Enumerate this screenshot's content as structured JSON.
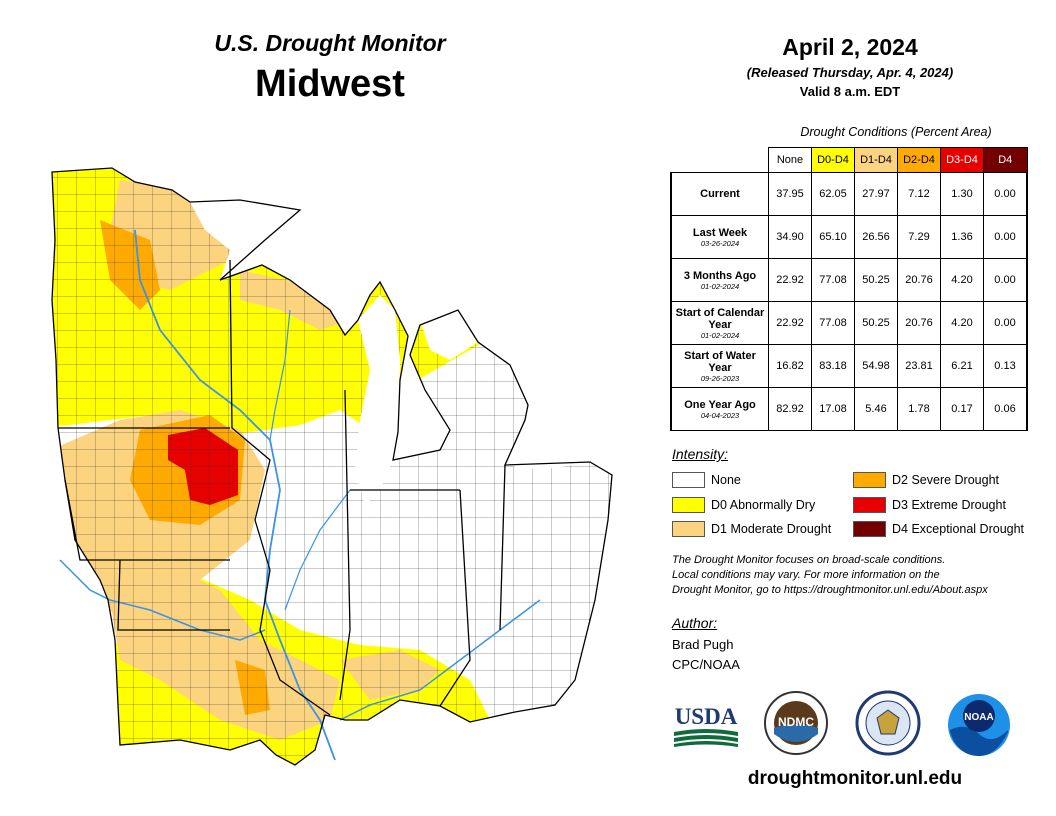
{
  "header": {
    "brand_title": "U.S. Drought Monitor",
    "region": "Midwest",
    "date": "April 2, 2024",
    "released": "(Released Thursday, Apr. 4, 2024)",
    "valid": "Valid 8 a.m. EDT"
  },
  "stats": {
    "caption": "Drought Conditions (Percent Area)",
    "columns": [
      {
        "label": "None",
        "color": "#ffffff",
        "text_color": "#000000"
      },
      {
        "label": "D0-D4",
        "color": "#ffff00",
        "text_color": "#000000"
      },
      {
        "label": "D1-D4",
        "color": "#fcd37f",
        "text_color": "#000000"
      },
      {
        "label": "D2-D4",
        "color": "#ffaa00",
        "text_color": "#000000"
      },
      {
        "label": "D3-D4",
        "color": "#e60000",
        "text_color": "#ffffff"
      },
      {
        "label": "D4",
        "color": "#730000",
        "text_color": "#ffffff"
      }
    ],
    "rows": [
      {
        "label": "Current",
        "date": "",
        "values": [
          "37.95",
          "62.05",
          "27.97",
          "7.12",
          "1.30",
          "0.00"
        ]
      },
      {
        "label": "Last Week",
        "date": "03-26-2024",
        "values": [
          "34.90",
          "65.10",
          "26.56",
          "7.29",
          "1.36",
          "0.00"
        ]
      },
      {
        "label": "3 Months Ago",
        "date": "01-02-2024",
        "values": [
          "22.92",
          "77.08",
          "50.25",
          "20.76",
          "4.20",
          "0.00"
        ]
      },
      {
        "label": "Start of Calendar Year",
        "date": "01-02-2024",
        "values": [
          "22.92",
          "77.08",
          "50.25",
          "20.76",
          "4.20",
          "0.00"
        ]
      },
      {
        "label": "Start of Water Year",
        "date": "09-26-2023",
        "values": [
          "16.82",
          "83.18",
          "54.98",
          "23.81",
          "6.21",
          "0.13"
        ]
      },
      {
        "label": "One Year Ago",
        "date": "04-04-2023",
        "values": [
          "82.92",
          "17.08",
          "5.46",
          "1.78",
          "0.17",
          "0.06"
        ]
      }
    ]
  },
  "legend": {
    "title": "Intensity:",
    "items": [
      {
        "label": "None",
        "color": "#ffffff"
      },
      {
        "label": "D0 Abnormally Dry",
        "color": "#ffff00"
      },
      {
        "label": "D1 Moderate Drought",
        "color": "#fcd37f"
      },
      {
        "label": "D2 Severe Drought",
        "color": "#ffaa00"
      },
      {
        "label": "D3 Extreme Drought",
        "color": "#e60000"
      },
      {
        "label": "D4 Exceptional Drought",
        "color": "#730000"
      }
    ]
  },
  "note": {
    "line1": "The Drought Monitor focuses on broad-scale conditions.",
    "line2": "Local conditions may vary. For more information on the",
    "line3": "Drought Monitor, go to https://droughtmonitor.unl.edu/About.aspx"
  },
  "author": {
    "label": "Author:",
    "name": "Brad Pugh",
    "org": "CPC/NOAA"
  },
  "logos": {
    "usda": "USDA",
    "ndmc": "NDMC",
    "noaa": "NOAA"
  },
  "footer": {
    "url": "droughtmonitor.unl.edu"
  },
  "map_colors": {
    "none": "#ffffff",
    "d0": "#ffff00",
    "d1": "#fcd37f",
    "d2": "#ffaa00",
    "d3": "#e60000",
    "water": "#3a93e8",
    "lake": "#ffffff"
  }
}
